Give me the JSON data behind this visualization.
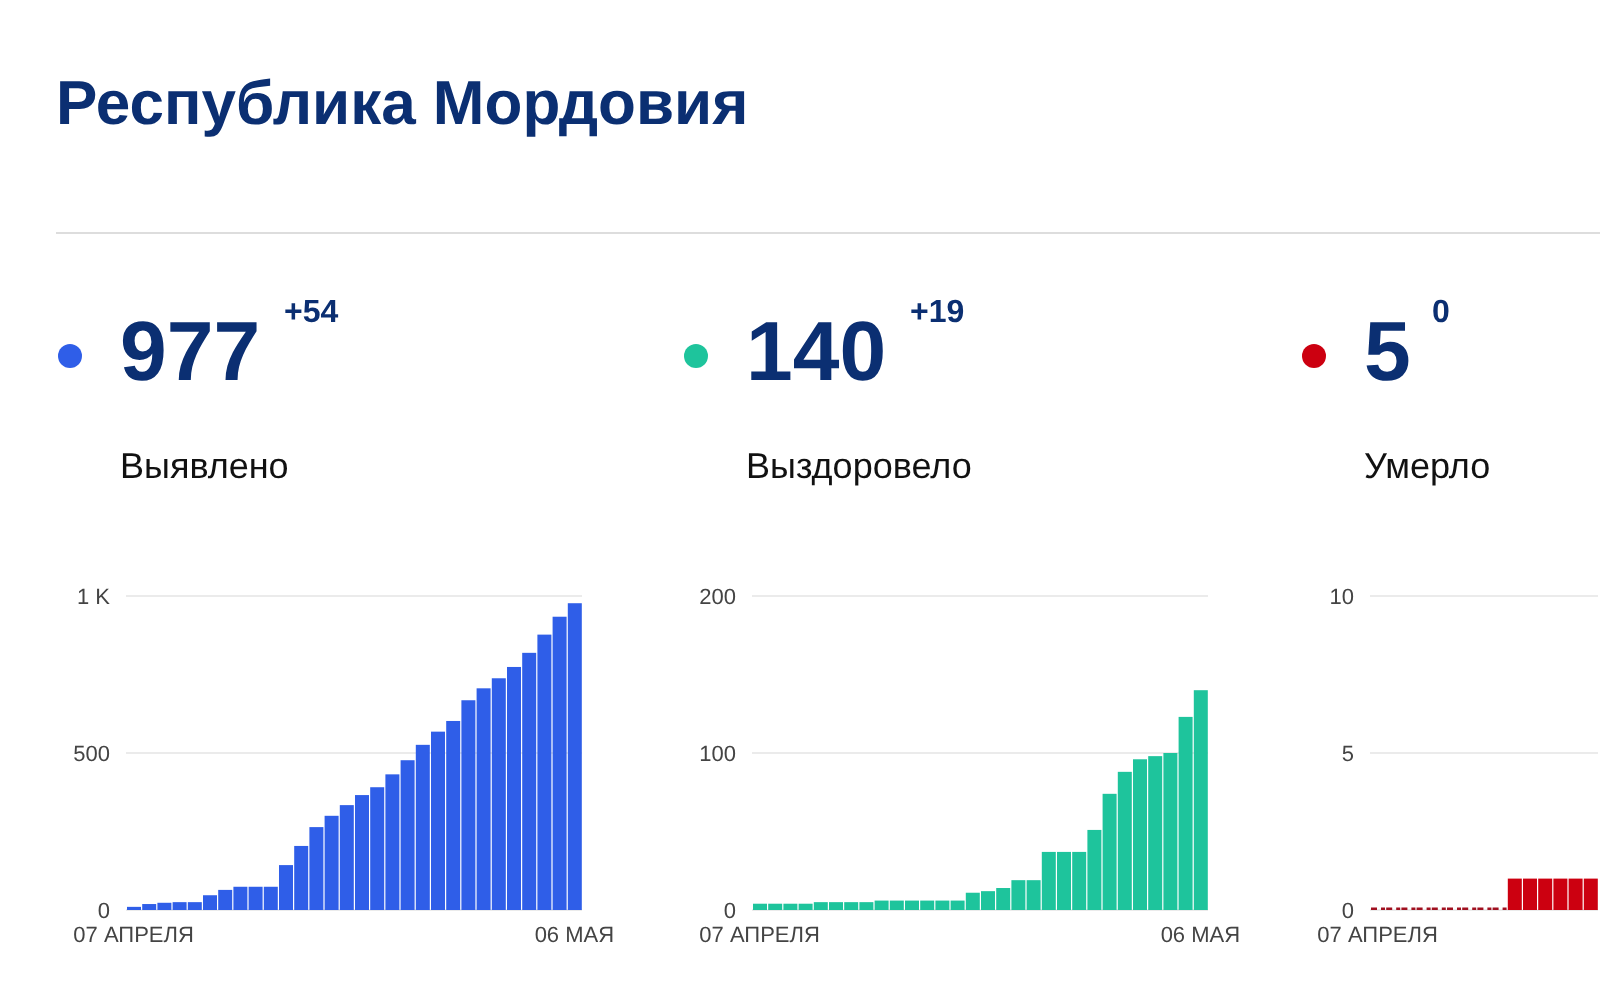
{
  "chart_data": [
    {
      "type": "other",
      "title": "Республика Мордовия"
    },
    {
      "type": "bar",
      "title": "Выявлено",
      "annotations": [
        "977",
        "+54"
      ],
      "color": "#2f5ee8",
      "grid": "y",
      "ylim": [
        0,
        1000
      ],
      "yticks": [
        0,
        500,
        {
          "value": 1000,
          "label": "1 K"
        }
      ],
      "categories": [
        "07 АПРЕЛЯ",
        null,
        null,
        null,
        null,
        null,
        null,
        null,
        null,
        null,
        null,
        null,
        null,
        null,
        null,
        null,
        null,
        null,
        null,
        null,
        null,
        null,
        null,
        null,
        null,
        null,
        null,
        null,
        null,
        "06 МАЯ"
      ],
      "values": [
        10,
        19,
        23,
        25,
        25,
        47,
        64,
        74,
        74,
        74,
        143,
        204,
        264,
        300,
        334,
        366,
        391,
        432,
        477,
        526,
        568,
        602,
        668,
        706,
        738,
        774,
        819,
        877,
        934,
        977
      ]
    },
    {
      "type": "bar",
      "title": "Выздоровело",
      "annotations": [
        "140",
        "+19"
      ],
      "color": "#1ec49c",
      "grid": "y",
      "ylim": [
        0,
        200
      ],
      "yticks": [
        0,
        100,
        200
      ],
      "categories": [
        "07 АПРЕЛЯ",
        null,
        null,
        null,
        null,
        null,
        null,
        null,
        null,
        null,
        null,
        null,
        null,
        null,
        null,
        null,
        null,
        null,
        null,
        null,
        null,
        null,
        null,
        null,
        null,
        null,
        null,
        null,
        null,
        "06 МАЯ"
      ],
      "values": [
        4,
        4,
        4,
        4,
        5,
        5,
        5,
        5,
        6,
        6,
        6,
        6,
        6,
        6,
        11,
        12,
        14,
        19,
        19,
        37,
        37,
        37,
        51,
        74,
        88,
        96,
        98,
        100,
        123,
        140
      ]
    },
    {
      "type": "bar",
      "title": "Умерло",
      "annotations": [
        "5",
        "0"
      ],
      "color": "#cc0010",
      "grid": "y",
      "ylim": [
        0,
        10
      ],
      "yticks": [
        0,
        5,
        10
      ],
      "categories": [
        "07 АПРЕЛЯ",
        null,
        null,
        null,
        null,
        null,
        null,
        null,
        null,
        null,
        null,
        null,
        null,
        null,
        null
      ],
      "values": [
        0,
        0,
        0,
        0,
        0,
        0,
        0,
        0,
        0,
        1,
        1,
        1,
        1,
        1,
        1
      ]
    }
  ]
}
